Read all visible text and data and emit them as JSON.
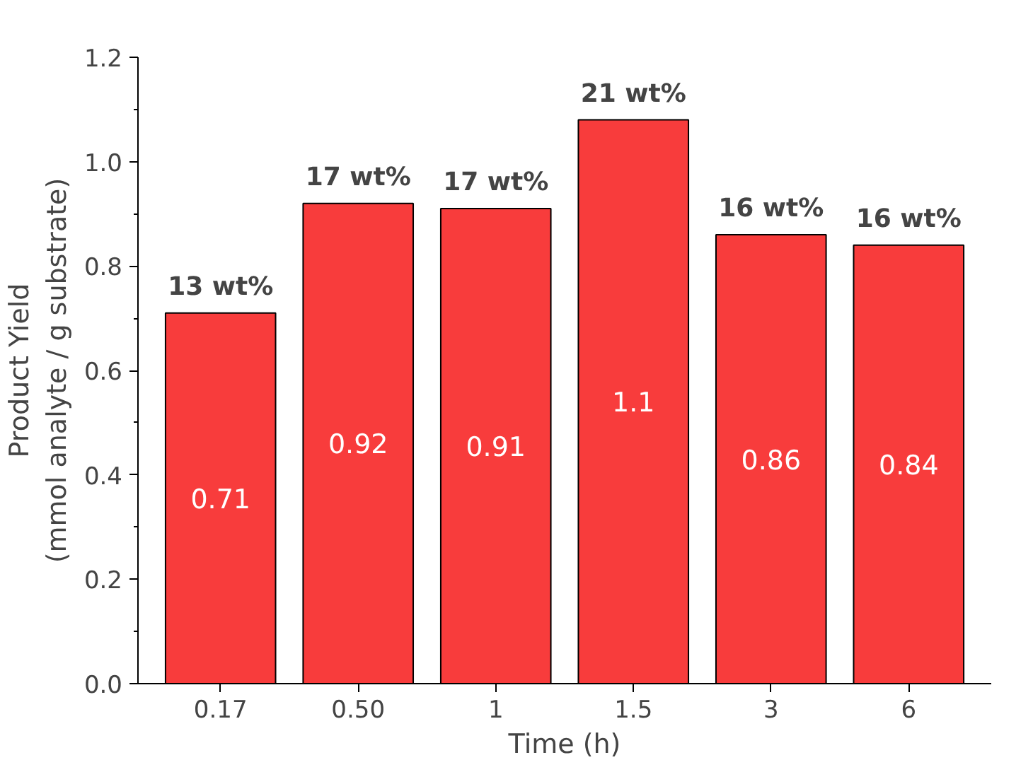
{
  "chart_data": {
    "type": "bar",
    "xlabel": "Time (h)",
    "ylabel": "Product Yield\n(mmol analyte / g substrate)",
    "categories": [
      "0.17",
      "0.50",
      "1",
      "1.5",
      "3",
      "6"
    ],
    "values": [
      0.71,
      0.92,
      0.91,
      1.08,
      0.86,
      0.84
    ],
    "value_labels": [
      "0.71",
      "0.92",
      "0.91",
      "1.1",
      "0.86",
      "0.84"
    ],
    "color": "#f83c3c",
    "ylim": [
      0,
      1.2
    ],
    "yticks": [
      {
        "value": 0,
        "label": "0.0"
      },
      0.2,
      0.4,
      0.6,
      0.8,
      {
        "value": 1,
        "label": "1.0"
      },
      1.2
    ],
    "annotations": [
      {
        "text": "13 wt%",
        "x": "0.17",
        "y": 0.71
      },
      {
        "text": "17 wt%",
        "x": "0.50",
        "y": 0.92
      },
      {
        "text": "17 wt%",
        "x": "1",
        "y": 0.91
      },
      {
        "text": "21 wt%",
        "x": "1.5",
        "y": 1.08
      },
      {
        "text": "16 wt%",
        "x": "3",
        "y": 0.86
      },
      {
        "text": "16 wt%",
        "x": "6",
        "y": 0.84
      }
    ],
    "grid": false
  }
}
